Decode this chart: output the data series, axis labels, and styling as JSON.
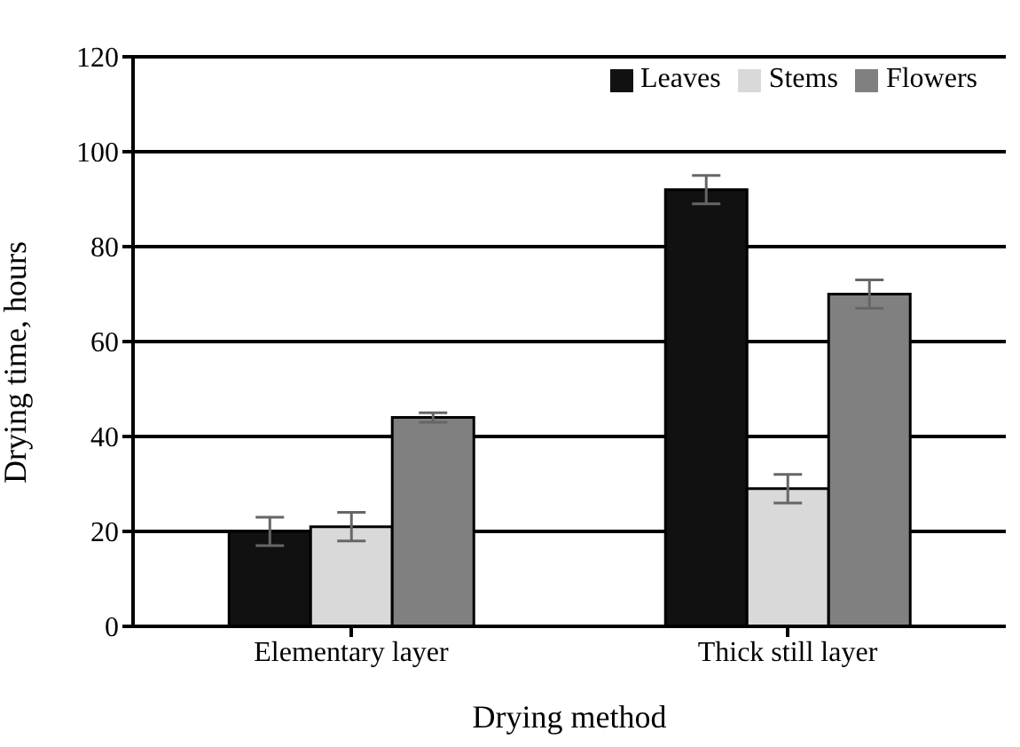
{
  "chart_data": {
    "type": "bar",
    "xlabel": "Drying method",
    "ylabel": "Drying time, hours",
    "categories": [
      "Elementary layer",
      "Thick still layer"
    ],
    "series": [
      {
        "name": "Leaves",
        "color": "#111111",
        "values": [
          20,
          92
        ],
        "errors": [
          3,
          3
        ]
      },
      {
        "name": "Stems",
        "color": "#d9d9d9",
        "values": [
          21,
          29
        ],
        "errors": [
          3,
          3
        ]
      },
      {
        "name": "Flowers",
        "color": "#808080",
        "values": [
          44,
          70
        ],
        "errors": [
          1,
          3
        ]
      }
    ],
    "ylim": [
      0,
      120
    ],
    "yticks": [
      0,
      20,
      40,
      60,
      80,
      100,
      120
    ],
    "grid": "y",
    "legend": "top right"
  }
}
